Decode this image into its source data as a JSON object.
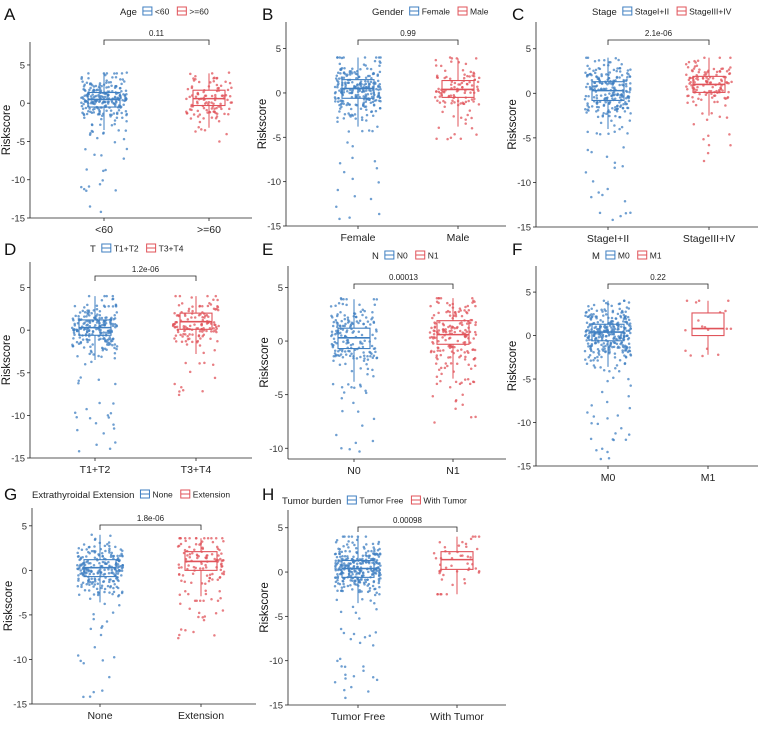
{
  "figure": {
    "colors": {
      "group1": "#3f7fc1",
      "group2": "#e0535a"
    },
    "y_axis_label": "Riskscore"
  },
  "chart_data": [
    {
      "type": "boxplot",
      "panel": "A",
      "title": "",
      "legend_title": "Age",
      "legend_position": "top",
      "categories": [
        "<60",
        ">=60"
      ],
      "legend_labels": [
        "<60",
        ">=60"
      ],
      "xlabel": "",
      "ylabel": "Riskscore",
      "ylim": [
        -15,
        8
      ],
      "yticks": [
        -15,
        -10,
        -5,
        0,
        5
      ],
      "p_value": "0.11",
      "series": [
        {
          "name": "<60",
          "n": 260,
          "min": -14.2,
          "q1": -0.5,
          "median": 0.5,
          "q3": 1.4,
          "max": 4.0,
          "whisker_low": -3.5,
          "whisker_high": 3.9
        },
        {
          "name": ">=60",
          "n": 110,
          "min": -5.0,
          "q1": -0.3,
          "median": 0.6,
          "q3": 1.7,
          "max": 4.0,
          "whisker_low": -3.2,
          "whisker_high": 3.9
        }
      ]
    },
    {
      "type": "boxplot",
      "panel": "B",
      "title": "",
      "legend_title": "Gender",
      "legend_position": "top",
      "categories": [
        "Female",
        "Male"
      ],
      "legend_labels": [
        "Female",
        "Male"
      ],
      "xlabel": "",
      "ylabel": "Riskscore",
      "ylim": [
        -15,
        8
      ],
      "yticks": [
        -15,
        -10,
        -5,
        0,
        5
      ],
      "p_value": "0.99",
      "series": [
        {
          "name": "Female",
          "n": 260,
          "min": -14.2,
          "q1": -0.6,
          "median": 0.5,
          "q3": 1.5,
          "max": 4.0,
          "whisker_low": -3.8,
          "whisker_high": 4.0
        },
        {
          "name": "Male",
          "n": 110,
          "min": -5.2,
          "q1": -0.5,
          "median": 0.4,
          "q3": 1.4,
          "max": 4.0,
          "whisker_low": -3.8,
          "whisker_high": 3.9
        }
      ]
    },
    {
      "type": "boxplot",
      "panel": "C",
      "title": "",
      "legend_title": "Stage",
      "legend_position": "top",
      "categories": [
        "StageI+II",
        "StageIII+IV"
      ],
      "legend_labels": [
        "StageI+II",
        "StageIII+IV"
      ],
      "xlabel": "",
      "ylabel": "Riskscore",
      "ylim": [
        -15,
        8
      ],
      "yticks": [
        -15,
        -10,
        -5,
        0,
        5
      ],
      "p_value": "2.1e-06",
      "series": [
        {
          "name": "StageI+II",
          "n": 250,
          "min": -14.2,
          "q1": -0.8,
          "median": 0.3,
          "q3": 1.3,
          "max": 4.0,
          "whisker_low": -4.0,
          "whisker_high": 4.0
        },
        {
          "name": "StageIII+IV",
          "n": 130,
          "min": -7.6,
          "q1": 0.1,
          "median": 1.0,
          "q3": 1.9,
          "max": 4.0,
          "whisker_low": -2.5,
          "whisker_high": 4.0
        }
      ]
    },
    {
      "type": "boxplot",
      "panel": "D",
      "title": "",
      "legend_title": "T",
      "legend_position": "top",
      "categories": [
        "T1+T2",
        "T3+T4"
      ],
      "legend_labels": [
        "T1+T2",
        "T3+T4"
      ],
      "xlabel": "",
      "ylabel": "Riskscore",
      "ylim": [
        -15,
        8
      ],
      "yticks": [
        -15,
        -10,
        -5,
        0,
        5
      ],
      "p_value": "1.2e-06",
      "series": [
        {
          "name": "T1+T2",
          "n": 240,
          "min": -14.2,
          "q1": -0.6,
          "median": 0.3,
          "q3": 1.2,
          "max": 4.0,
          "whisker_low": -3.5,
          "whisker_high": 4.0
        },
        {
          "name": "T3+T4",
          "n": 140,
          "min": -7.6,
          "q1": 0.1,
          "median": 1.0,
          "q3": 2.0,
          "max": 4.0,
          "whisker_low": -2.8,
          "whisker_high": 4.0
        }
      ]
    },
    {
      "type": "boxplot",
      "panel": "E",
      "title": "",
      "legend_title": "N",
      "legend_position": "top",
      "categories": [
        "N0",
        "N1"
      ],
      "legend_labels": [
        "N0",
        "N1"
      ],
      "xlabel": "",
      "ylabel": "Riskscore",
      "ylim": [
        -11,
        7
      ],
      "yticks": [
        -10,
        -5,
        0,
        5
      ],
      "p_value": "0.00013",
      "series": [
        {
          "name": "N0",
          "n": 190,
          "min": -10.3,
          "q1": -0.7,
          "median": 0.3,
          "q3": 1.2,
          "max": 4.0,
          "whisker_low": -3.8,
          "whisker_high": 3.9
        },
        {
          "name": "N1",
          "n": 190,
          "min": -7.6,
          "q1": -0.3,
          "median": 0.6,
          "q3": 1.9,
          "max": 4.0,
          "whisker_low": -3.5,
          "whisker_high": 4.0
        }
      ]
    },
    {
      "type": "boxplot",
      "panel": "F",
      "title": "",
      "legend_title": "M",
      "legend_position": "top",
      "categories": [
        "M0",
        "M1"
      ],
      "legend_labels": [
        "M0",
        "M1"
      ],
      "xlabel": "",
      "ylabel": "Riskscore",
      "ylim": [
        -15,
        8
      ],
      "yticks": [
        -15,
        -10,
        -5,
        0,
        5
      ],
      "p_value": "0.22",
      "series": [
        {
          "name": "M0",
          "n": 330,
          "min": -14.2,
          "q1": -0.6,
          "median": 0.4,
          "q3": 1.3,
          "max": 4.0,
          "whisker_low": -3.6,
          "whisker_high": 4.0
        },
        {
          "name": "M1",
          "n": 16,
          "min": -2.2,
          "q1": 0.0,
          "median": 0.8,
          "q3": 2.6,
          "max": 4.0,
          "whisker_low": -2.2,
          "whisker_high": 4.0
        }
      ]
    },
    {
      "type": "boxplot",
      "panel": "G",
      "title": "",
      "legend_title": "Extrathyroidal Extension",
      "legend_position": "top",
      "categories": [
        "None",
        "Extension"
      ],
      "legend_labels": [
        "None",
        "Extension"
      ],
      "xlabel": "",
      "ylabel": "Riskscore",
      "ylim": [
        -15,
        7
      ],
      "yticks": [
        -15,
        -10,
        -5,
        0,
        5
      ],
      "p_value": "1.8e-06",
      "series": [
        {
          "name": "None",
          "n": 250,
          "min": -14.2,
          "q1": -0.7,
          "median": 0.3,
          "q3": 1.2,
          "max": 4.0,
          "whisker_low": -3.6,
          "whisker_high": 4.0
        },
        {
          "name": "Extension",
          "n": 130,
          "min": -7.6,
          "q1": 0.0,
          "median": 1.0,
          "q3": 2.1,
          "max": 3.6,
          "whisker_low": -2.9,
          "whisker_high": 3.6
        }
      ]
    },
    {
      "type": "boxplot",
      "panel": "H",
      "title": "",
      "legend_title": "Tumor burden",
      "legend_position": "top",
      "categories": [
        "Tumor Free",
        "With Tumor"
      ],
      "legend_labels": [
        "Tumor Free",
        "With Tumor"
      ],
      "xlabel": "",
      "ylabel": "Riskscore",
      "ylim": [
        -15,
        7
      ],
      "yticks": [
        -15,
        -10,
        -5,
        0,
        5
      ],
      "p_value": "0.00098",
      "series": [
        {
          "name": "Tumor Free",
          "n": 320,
          "min": -14.2,
          "q1": -0.6,
          "median": 0.4,
          "q3": 1.3,
          "max": 4.0,
          "whisker_low": -3.5,
          "whisker_high": 4.0
        },
        {
          "name": "With Tumor",
          "n": 45,
          "min": -2.5,
          "q1": 0.3,
          "median": 1.4,
          "q3": 2.3,
          "max": 4.0,
          "whisker_low": -2.5,
          "whisker_high": 4.0
        }
      ]
    }
  ]
}
